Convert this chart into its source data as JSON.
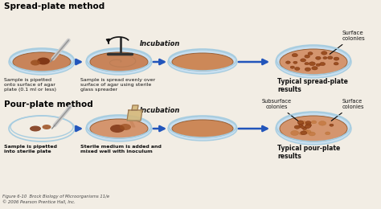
{
  "bg_color": "#f2ede4",
  "title_spread": "Spread-plate method",
  "title_pour": "Pour-plate method",
  "spread_steps": [
    "Sample is pipetted\nonto surface of agar\nplate (0.1 ml or less)",
    "Sample is spread evenly over\nsurface of agar using sterile\nglass spreader",
    "",
    "Typical spread-plate\nresults"
  ],
  "pour_steps": [
    "Sample is pipetted\ninto sterile plate",
    "Sterile medium is added and\nmixed well with inoculum",
    "",
    "Typical pour-plate\nresults"
  ],
  "incubation_label": "Incubation",
  "footer": "Figure 6-10  Brock Biology of Microorganisms 11/e\n© 2006 Pearson Prentice Hall, Inc.",
  "agar_color": "#c8845a",
  "agar_color2": "#d4956e",
  "agar_light": "#cc8858",
  "plate_rim": "#a8cde0",
  "plate_rim2": "#c8dff0",
  "plate_inner_rim": "#b8d5e8",
  "arrow_color": "#2255bb",
  "colony_dark": "#7a3010",
  "colony_med": "#9b4f20",
  "colony_light": "#c47840",
  "text_color": "#111111",
  "title_color": "#000000",
  "spreader_color": "#333333",
  "pipette_color": "#aaaaaa",
  "bottle_color": "#d4b87a",
  "surface_colonies_label": "Surface\ncolonies",
  "subsurface_colonies_label": "Subsurface\ncolonies"
}
